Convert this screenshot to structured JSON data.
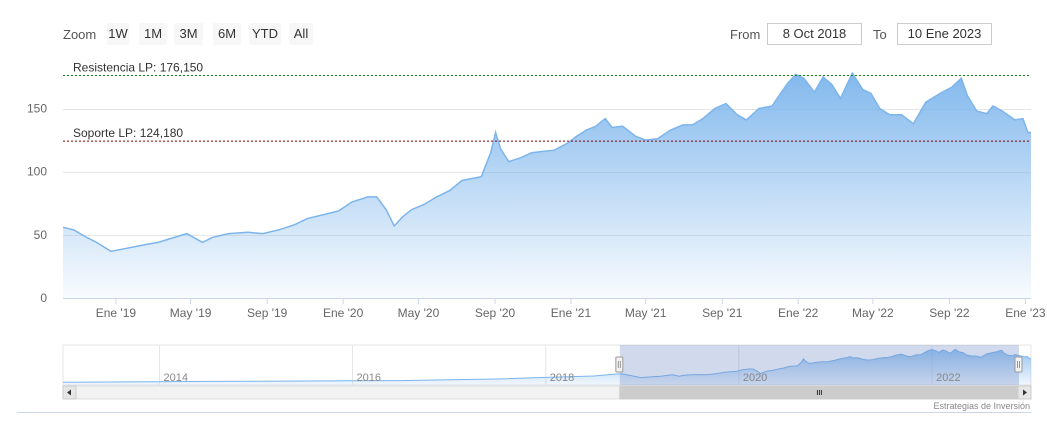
{
  "range_selector": {
    "zoom_label": "Zoom",
    "buttons": [
      "1W",
      "1M",
      "3M",
      "6M",
      "YTD",
      "All"
    ],
    "from_label": "From",
    "from_value": "8 Oct 2018",
    "to_label": "To",
    "to_value": "10 Ene 2023"
  },
  "credit": "Estrategias de Inversión",
  "colors": {
    "line": "#7cb5ec",
    "resistance": "#1a7a1a",
    "support": "#8b0000"
  },
  "chart_data": {
    "type": "area",
    "title": "",
    "xlabel": "",
    "ylabel": "",
    "ylim": [
      0,
      190
    ],
    "yticks": [
      0,
      50,
      100,
      150
    ],
    "x_range": [
      "2018-10-08",
      "2023-01-10"
    ],
    "xticks": [
      {
        "date": "2019-01-01",
        "label": "Ene '19"
      },
      {
        "date": "2019-05-01",
        "label": "May '19"
      },
      {
        "date": "2019-09-01",
        "label": "Sep '19"
      },
      {
        "date": "2020-01-01",
        "label": "Ene '20"
      },
      {
        "date": "2020-05-01",
        "label": "May '20"
      },
      {
        "date": "2020-09-01",
        "label": "Sep '20"
      },
      {
        "date": "2021-01-01",
        "label": "Ene '21"
      },
      {
        "date": "2021-05-01",
        "label": "May '21"
      },
      {
        "date": "2021-09-01",
        "label": "Sep '21"
      },
      {
        "date": "2022-01-01",
        "label": "Ene '22"
      },
      {
        "date": "2022-05-01",
        "label": "May '22"
      },
      {
        "date": "2022-09-01",
        "label": "Sep '22"
      },
      {
        "date": "2023-01-01",
        "label": "Ene '23"
      }
    ],
    "series": [
      {
        "x": [
          "2018-10-08",
          "2018-10-25",
          "2018-11-15",
          "2018-12-01",
          "2018-12-24",
          "2019-01-15",
          "2019-02-15",
          "2019-03-10",
          "2019-04-05",
          "2019-04-25",
          "2019-05-20",
          "2019-06-05",
          "2019-07-01",
          "2019-08-01",
          "2019-08-25",
          "2019-09-20",
          "2019-10-15",
          "2019-11-05",
          "2019-12-01",
          "2019-12-25",
          "2020-01-15",
          "2020-02-10",
          "2020-02-24",
          "2020-03-10",
          "2020-03-23",
          "2020-04-05",
          "2020-04-20",
          "2020-05-10",
          "2020-05-30",
          "2020-06-20",
          "2020-07-10",
          "2020-07-30",
          "2020-08-10",
          "2020-08-25",
          "2020-09-02",
          "2020-09-10",
          "2020-09-23",
          "2020-10-12",
          "2020-10-30",
          "2020-11-15",
          "2020-12-05",
          "2020-12-28",
          "2021-01-10",
          "2021-01-26",
          "2021-02-10",
          "2021-02-25",
          "2021-03-08",
          "2021-03-25",
          "2021-04-15",
          "2021-05-01",
          "2021-05-20",
          "2021-06-10",
          "2021-06-30",
          "2021-07-15",
          "2021-08-01",
          "2021-08-20",
          "2021-09-07",
          "2021-09-25",
          "2021-10-10",
          "2021-10-30",
          "2021-11-20",
          "2021-12-01",
          "2021-12-15",
          "2021-12-28",
          "2022-01-10",
          "2022-01-27",
          "2022-02-10",
          "2022-02-24",
          "2022-03-10",
          "2022-03-29",
          "2022-04-15",
          "2022-04-28",
          "2022-05-12",
          "2022-05-28",
          "2022-06-16",
          "2022-07-05",
          "2022-07-25",
          "2022-08-17",
          "2022-09-05",
          "2022-09-20",
          "2022-09-30",
          "2022-10-15",
          "2022-10-31",
          "2022-11-10",
          "2022-11-25",
          "2022-12-15",
          "2022-12-28",
          "2023-01-05",
          "2023-01-10"
        ],
        "values": [
          56,
          54,
          48,
          44,
          37,
          39,
          42,
          44,
          48,
          51,
          44,
          48,
          51,
          52,
          51,
          54,
          58,
          63,
          66,
          69,
          76,
          80,
          80,
          70,
          57,
          64,
          70,
          74,
          80,
          85,
          93,
          95,
          96,
          115,
          131,
          118,
          108,
          111,
          115,
          116,
          117,
          123,
          128,
          133,
          136,
          142,
          135,
          136,
          128,
          125,
          126,
          133,
          137,
          137,
          142,
          150,
          154,
          145,
          141,
          150,
          152,
          160,
          170,
          177,
          174,
          163,
          175,
          169,
          158,
          178,
          165,
          162,
          150,
          145,
          145,
          138,
          155,
          162,
          167,
          174,
          160,
          148,
          146,
          152,
          148,
          141,
          142,
          131,
          131
        ]
      }
    ],
    "reference_lines": [
      {
        "label": "Resistencia LP: 176,150",
        "value": 176.15
      },
      {
        "label": "Soporte LP: 124,180",
        "value": 124.18
      }
    ],
    "navigator": {
      "labels": [
        "2014",
        "2016",
        "2018",
        "2020",
        "2022"
      ],
      "history": {
        "x": [
          "2013-01-01",
          "2013-07-01",
          "2014-01-01",
          "2014-07-01",
          "2015-01-01",
          "2015-07-01",
          "2016-01-01",
          "2016-07-01",
          "2017-01-01",
          "2017-07-01",
          "2018-01-01",
          "2018-07-01",
          "2018-10-08"
        ],
        "values": [
          14,
          15,
          16,
          18,
          19,
          20,
          21,
          22,
          26,
          30,
          38,
          45,
          56
        ]
      }
    }
  }
}
